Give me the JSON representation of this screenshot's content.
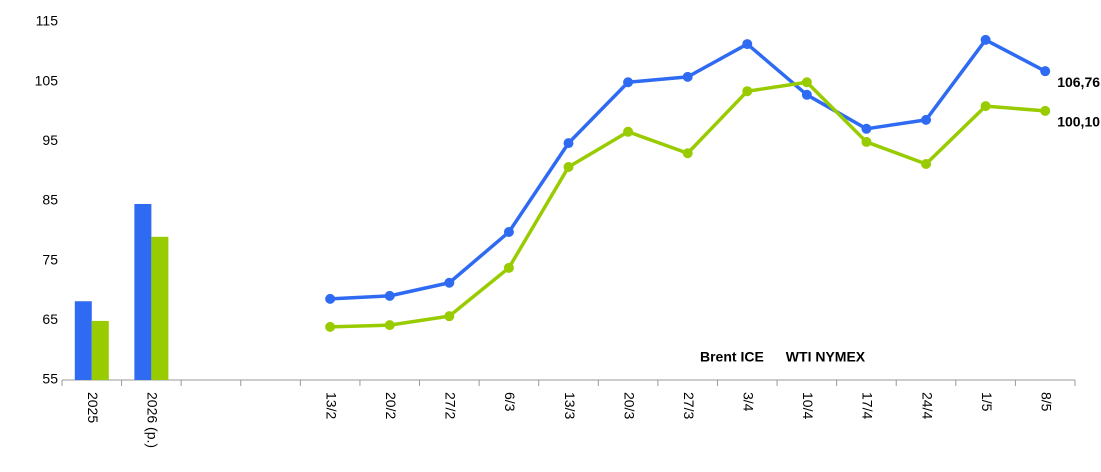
{
  "chart_data": {
    "type": "combo",
    "categories": [
      "2025",
      "2026 (p.)",
      null,
      null,
      "13/2",
      "20/2",
      "27/2",
      "6/3",
      "13/3",
      "20/3",
      "27/3",
      "3/4",
      "10/4",
      "17/4",
      "24/4",
      "1/5",
      "8/5"
    ],
    "series": [
      {
        "name": "Brent ICE",
        "color": "#2f6bf2",
        "bar_values": [
          68.2,
          84.5,
          null,
          null,
          null,
          null,
          null,
          null,
          null,
          null,
          null,
          null,
          null,
          null,
          null,
          null,
          null
        ],
        "values": [
          null,
          null,
          null,
          null,
          68.6,
          69.1,
          71.3,
          79.8,
          94.7,
          104.9,
          105.8,
          111.3,
          102.8,
          97.1,
          98.6,
          112.0,
          106.76
        ],
        "value_labels": [
          null,
          null,
          null,
          null,
          null,
          null,
          null,
          null,
          null,
          null,
          null,
          null,
          null,
          null,
          null,
          null,
          "106,76"
        ]
      },
      {
        "name": "WTI NYMEX",
        "color": "#99cc00",
        "bar_values": [
          64.9,
          79.0,
          null,
          null,
          null,
          null,
          null,
          null,
          null,
          null,
          null,
          null,
          null,
          null,
          null,
          null,
          null
        ],
        "values": [
          null,
          null,
          null,
          null,
          63.9,
          64.2,
          65.7,
          73.8,
          90.7,
          96.6,
          93.0,
          103.4,
          104.9,
          94.9,
          91.2,
          100.9,
          100.1
        ],
        "value_labels": [
          null,
          null,
          null,
          null,
          null,
          null,
          null,
          null,
          null,
          null,
          null,
          null,
          null,
          null,
          null,
          null,
          "100,10"
        ]
      }
    ],
    "ylim": [
      55,
      115
    ],
    "yticks": [
      55,
      65,
      75,
      85,
      95,
      105,
      115
    ],
    "legend": "lower right",
    "grid": false
  }
}
